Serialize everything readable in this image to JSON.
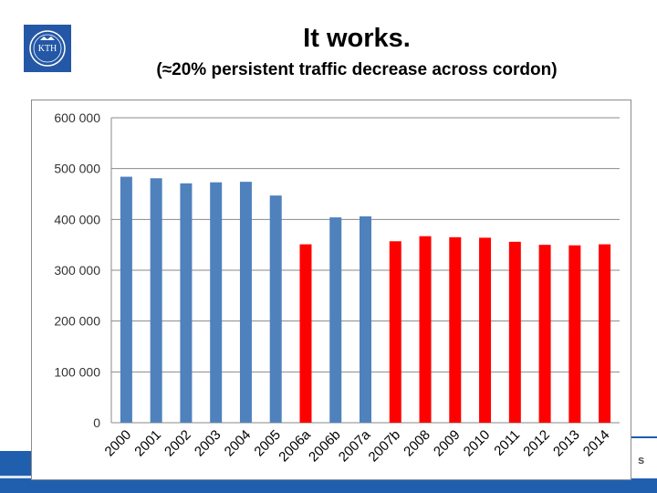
{
  "slide": {
    "title": "It works.",
    "subtitle": "(≈20% persistent traffic decrease across cordon)",
    "logo_text": "KTH",
    "footer_fragment": "s"
  },
  "colors": {
    "blue_bar": "#4f81bd",
    "red_bar": "#ff0000",
    "footer": "#1f5fae"
  },
  "chart_data": {
    "type": "bar",
    "title": "",
    "xlabel": "",
    "ylabel": "",
    "ylim": [
      0,
      600000
    ],
    "y_ticks": [
      "0",
      "100 000",
      "200 000",
      "300 000",
      "400 000",
      "500 000",
      "600 000"
    ],
    "grid": true,
    "categories": [
      "2000",
      "2001",
      "2002",
      "2003",
      "2004",
      "2005",
      "2006a",
      "2006b",
      "2007a",
      "2007b",
      "2008",
      "2009",
      "2010",
      "2011",
      "2012",
      "2013",
      "2014"
    ],
    "values": [
      484000,
      481000,
      471000,
      473000,
      474000,
      447000,
      351000,
      404000,
      406000,
      357000,
      367000,
      365000,
      364000,
      356000,
      350000,
      349000,
      351000
    ],
    "bar_colors": [
      "blue",
      "blue",
      "blue",
      "blue",
      "blue",
      "blue",
      "red",
      "blue",
      "blue",
      "red",
      "red",
      "red",
      "red",
      "red",
      "red",
      "red",
      "red"
    ]
  }
}
